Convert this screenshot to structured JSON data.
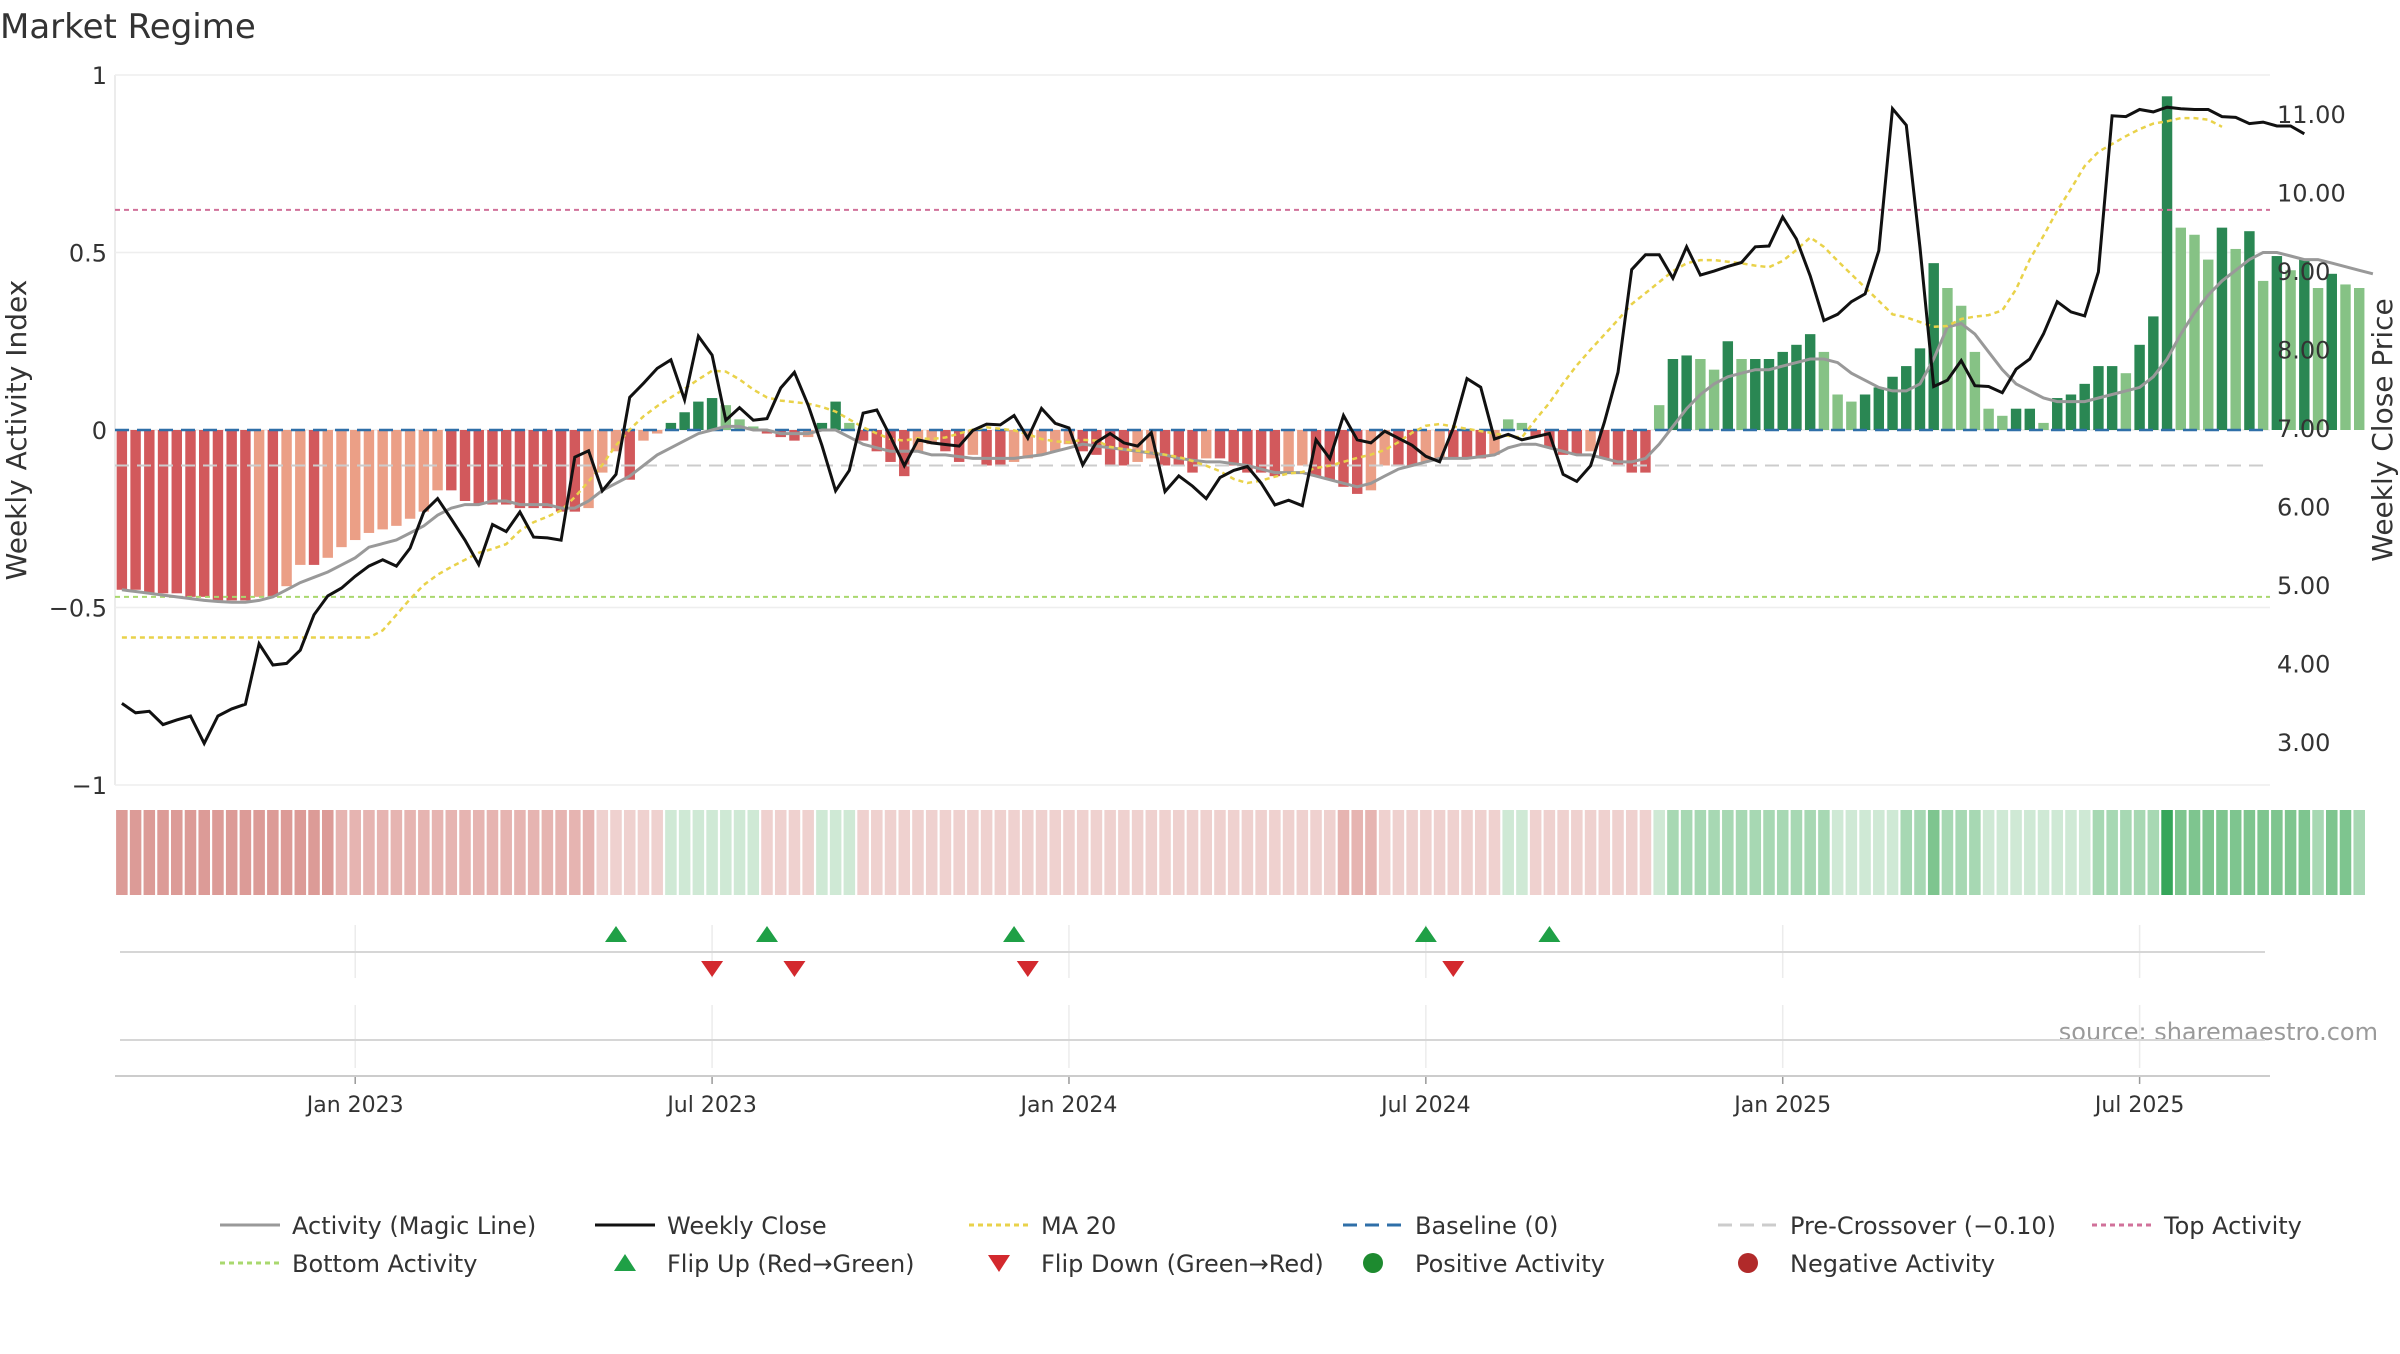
{
  "chart_data": {
    "type": "bar",
    "title": "Market Regime",
    "ylabel_left": "Weekly Activity Index",
    "ylabel_right": "Weekly Close Price",
    "source": "source: sharemaestro.com",
    "left_axis": {
      "ylim": [
        -1.0,
        1.0
      ],
      "ticks": [
        -1,
        -0.5,
        0,
        0.5,
        1
      ],
      "tick_labels": [
        "−1",
        "−0.5",
        "0",
        "0.5",
        "1"
      ]
    },
    "right_axis": {
      "ylim": [
        2.45,
        11.5
      ],
      "ticks": [
        3,
        4,
        5,
        6,
        7,
        8,
        9,
        10,
        11
      ],
      "tick_labels": [
        "3.00",
        "4.00",
        "5.00",
        "6.00",
        "7.00",
        "8.00",
        "9.00",
        "10.00",
        "11.00"
      ]
    },
    "x_tick_labels": [
      "Jan 2023",
      "Jul 2023",
      "Jan 2024",
      "Jul 2024",
      "Jan 2025",
      "Jul 2025"
    ],
    "x_tick_weeks": [
      17,
      43,
      69,
      95,
      121,
      147
    ],
    "week_count": 157,
    "reference_levels": {
      "baseline": 0,
      "pre_crossover": -0.1,
      "top_activity": 0.62,
      "bottom_activity": -0.47
    },
    "activity": [
      -0.45,
      -0.45,
      -0.46,
      -0.46,
      -0.46,
      -0.47,
      -0.47,
      -0.48,
      -0.48,
      -0.48,
      -0.47,
      -0.47,
      -0.44,
      -0.38,
      -0.38,
      -0.36,
      -0.33,
      -0.31,
      -0.29,
      -0.28,
      -0.27,
      -0.25,
      -0.23,
      -0.17,
      -0.17,
      -0.2,
      -0.21,
      -0.21,
      -0.21,
      -0.22,
      -0.22,
      -0.22,
      -0.23,
      -0.23,
      -0.22,
      -0.12,
      -0.06,
      -0.14,
      -0.03,
      -0.01,
      0.02,
      0.05,
      0.08,
      0.09,
      0.07,
      0.03,
      0.01,
      -0.01,
      -0.02,
      -0.03,
      -0.02,
      0.02,
      0.08,
      0.02,
      -0.03,
      -0.06,
      -0.09,
      -0.13,
      -0.06,
      -0.04,
      -0.06,
      -0.09,
      -0.07,
      -0.1,
      -0.1,
      -0.09,
      -0.08,
      -0.07,
      -0.06,
      -0.04,
      -0.06,
      -0.07,
      -0.1,
      -0.1,
      -0.09,
      -0.08,
      -0.1,
      -0.1,
      -0.12,
      -0.08,
      -0.08,
      -0.1,
      -0.12,
      -0.12,
      -0.13,
      -0.12,
      -0.1,
      -0.13,
      -0.14,
      -0.16,
      -0.18,
      -0.17,
      -0.1,
      -0.1,
      -0.1,
      -0.09,
      -0.08,
      -0.08,
      -0.08,
      -0.08,
      -0.07,
      0.03,
      0.02,
      -0.02,
      -0.05,
      -0.07,
      -0.07,
      -0.06,
      -0.08,
      -0.1,
      -0.12,
      -0.12,
      0.07,
      0.2,
      0.21,
      0.2,
      0.17,
      0.25,
      0.2,
      0.2,
      0.2,
      0.22,
      0.24,
      0.27,
      0.22,
      0.1,
      0.08,
      0.1,
      0.12,
      0.15,
      0.18,
      0.23,
      0.47,
      0.4,
      0.35,
      0.22,
      0.06,
      0.04,
      0.06,
      0.06,
      0.02,
      0.09,
      0.1,
      0.13,
      0.18,
      0.18,
      0.16,
      0.24,
      0.32,
      0.94,
      0.57,
      0.55,
      0.48,
      0.57,
      0.51,
      0.56,
      0.42,
      0.49,
      0.45,
      0.48,
      0.4,
      0.44,
      0.41,
      0.4
    ],
    "magic_line": [
      -0.45,
      -0.455,
      -0.46,
      -0.465,
      -0.47,
      -0.475,
      -0.48,
      -0.483,
      -0.485,
      -0.485,
      -0.48,
      -0.47,
      -0.45,
      -0.43,
      -0.415,
      -0.4,
      -0.38,
      -0.36,
      -0.33,
      -0.32,
      -0.31,
      -0.29,
      -0.27,
      -0.24,
      -0.22,
      -0.21,
      -0.21,
      -0.2,
      -0.2,
      -0.21,
      -0.21,
      -0.21,
      -0.22,
      -0.22,
      -0.2,
      -0.17,
      -0.15,
      -0.13,
      -0.1,
      -0.07,
      -0.05,
      -0.03,
      -0.01,
      0.0,
      0.01,
      0.01,
      0.0,
      0.0,
      -0.01,
      -0.01,
      -0.01,
      0.0,
      0.0,
      -0.02,
      -0.04,
      -0.05,
      -0.06,
      -0.06,
      -0.06,
      -0.07,
      -0.07,
      -0.075,
      -0.08,
      -0.08,
      -0.08,
      -0.08,
      -0.075,
      -0.07,
      -0.06,
      -0.05,
      -0.04,
      -0.045,
      -0.05,
      -0.055,
      -0.06,
      -0.065,
      -0.07,
      -0.08,
      -0.085,
      -0.09,
      -0.09,
      -0.095,
      -0.1,
      -0.11,
      -0.12,
      -0.12,
      -0.12,
      -0.13,
      -0.14,
      -0.15,
      -0.16,
      -0.15,
      -0.13,
      -0.11,
      -0.1,
      -0.09,
      -0.08,
      -0.08,
      -0.08,
      -0.075,
      -0.07,
      -0.05,
      -0.04,
      -0.04,
      -0.05,
      -0.06,
      -0.07,
      -0.07,
      -0.08,
      -0.09,
      -0.09,
      -0.08,
      -0.04,
      0.01,
      0.06,
      0.1,
      0.13,
      0.15,
      0.16,
      0.17,
      0.17,
      0.18,
      0.19,
      0.2,
      0.2,
      0.19,
      0.16,
      0.14,
      0.12,
      0.11,
      0.11,
      0.13,
      0.2,
      0.29,
      0.3,
      0.27,
      0.22,
      0.17,
      0.13,
      0.11,
      0.09,
      0.08,
      0.08,
      0.08,
      0.09,
      0.1,
      0.11,
      0.12,
      0.15,
      0.2,
      0.27,
      0.33,
      0.38,
      0.42,
      0.45,
      0.48,
      0.5,
      0.5,
      0.49,
      0.48,
      0.48,
      0.47,
      0.46,
      0.45,
      0.44
    ],
    "weekly_close": [
      3.49,
      3.37,
      3.39,
      3.22,
      3.28,
      3.33,
      2.98,
      3.33,
      3.42,
      3.48,
      4.25,
      3.98,
      4.0,
      4.17,
      4.62,
      4.86,
      4.96,
      5.11,
      5.24,
      5.32,
      5.24,
      5.47,
      5.93,
      6.1,
      5.84,
      5.57,
      5.26,
      5.77,
      5.68,
      5.93,
      5.61,
      5.6,
      5.57,
      6.63,
      6.71,
      6.2,
      6.41,
      7.39,
      7.57,
      7.76,
      7.87,
      7.36,
      8.17,
      7.93,
      7.1,
      7.26,
      7.1,
      7.12,
      7.51,
      7.71,
      7.29,
      6.78,
      6.2,
      6.46,
      7.19,
      7.23,
      6.89,
      6.52,
      6.85,
      6.81,
      6.79,
      6.77,
      6.97,
      7.05,
      7.04,
      7.16,
      6.87,
      7.25,
      7.06,
      7.0,
      6.53,
      6.82,
      6.93,
      6.81,
      6.77,
      6.94,
      6.19,
      6.39,
      6.26,
      6.1,
      6.37,
      6.46,
      6.51,
      6.3,
      6.02,
      6.08,
      6.01,
      6.85,
      6.61,
      7.16,
      6.85,
      6.81,
      6.96,
      6.87,
      6.78,
      6.64,
      6.57,
      7.0,
      7.63,
      7.52,
      6.86,
      6.92,
      6.85,
      6.89,
      6.93,
      6.41,
      6.32,
      6.52,
      7.07,
      7.71,
      9.02,
      9.21,
      9.21,
      8.91,
      9.31,
      8.95,
      9.0,
      9.06,
      9.11,
      9.31,
      9.32,
      9.69,
      9.41,
      8.94,
      8.37,
      8.45,
      8.61,
      8.71,
      9.26,
      11.07,
      10.86,
      9.3,
      7.53,
      7.61,
      7.86,
      7.54,
      7.53,
      7.45,
      7.75,
      7.88,
      8.2,
      8.61,
      8.48,
      8.43,
      8.99,
      10.98,
      10.97,
      11.06,
      11.03,
      11.09,
      11.07,
      11.06,
      11.06,
      10.97,
      10.96,
      10.88,
      10.9,
      10.85,
      10.85,
      10.75
    ],
    "ma20": [
      4.33,
      4.33,
      4.33,
      4.33,
      4.33,
      4.33,
      4.33,
      4.33,
      4.33,
      4.33,
      4.33,
      4.33,
      4.33,
      4.33,
      4.33,
      4.33,
      4.33,
      4.33,
      4.33,
      4.42,
      4.62,
      4.82,
      5.0,
      5.13,
      5.23,
      5.32,
      5.41,
      5.46,
      5.52,
      5.69,
      5.8,
      5.87,
      5.95,
      6.12,
      6.32,
      6.53,
      6.78,
      6.98,
      7.15,
      7.28,
      7.39,
      7.5,
      7.62,
      7.73,
      7.72,
      7.62,
      7.49,
      7.39,
      7.35,
      7.33,
      7.31,
      7.27,
      7.21,
      7.11,
      7.01,
      6.93,
      6.86,
      6.84,
      6.87,
      6.86,
      6.88,
      6.93,
      6.98,
      7.01,
      6.99,
      6.97,
      6.92,
      6.86,
      6.83,
      6.82,
      6.85,
      6.84,
      6.76,
      6.73,
      6.71,
      6.69,
      6.66,
      6.63,
      6.58,
      6.52,
      6.45,
      6.35,
      6.3,
      6.33,
      6.38,
      6.42,
      6.44,
      6.49,
      6.52,
      6.57,
      6.62,
      6.66,
      6.72,
      6.82,
      6.94,
      7.03,
      7.05,
      7.02,
      6.99,
      6.96,
      6.93,
      6.9,
      6.88,
      7.11,
      7.32,
      7.57,
      7.8,
      8.0,
      8.19,
      8.38,
      8.58,
      8.72,
      8.86,
      9.0,
      9.1,
      9.14,
      9.14,
      9.12,
      9.1,
      9.07,
      9.05,
      9.13,
      9.27,
      9.43,
      9.31,
      9.13,
      8.96,
      8.79,
      8.62,
      8.45,
      8.41,
      8.35,
      8.29,
      8.3,
      8.39,
      8.42,
      8.44,
      8.5,
      8.77,
      9.15,
      9.45,
      9.77,
      10.05,
      10.34,
      10.52,
      10.62,
      10.72,
      10.81,
      10.88,
      10.91,
      10.95,
      10.95,
      10.93,
      10.84
    ],
    "flip_up_weeks": [
      36,
      47,
      65,
      95,
      104
    ],
    "flip_down_weeks": [
      43,
      49,
      66,
      97
    ],
    "legend": [
      {
        "label": "Activity (Magic Line)",
        "kind": "line",
        "color": "#999999",
        "dash": ""
      },
      {
        "label": "Weekly Close",
        "kind": "line",
        "color": "#111111",
        "dash": ""
      },
      {
        "label": "MA 20",
        "kind": "line",
        "color": "#e9d24a",
        "dash": "5,4"
      },
      {
        "label": "Baseline (0)",
        "kind": "line",
        "color": "#2f6fa8",
        "dash": "14,8"
      },
      {
        "label": "Pre-Crossover (−0.10)",
        "kind": "line",
        "color": "#cccccc",
        "dash": "14,8"
      },
      {
        "label": "Top Activity",
        "kind": "line",
        "color": "#d1719a",
        "dash": "5,4"
      },
      {
        "label": "Bottom Activity",
        "kind": "line",
        "color": "#a9d86e",
        "dash": "5,4"
      },
      {
        "label": "Flip Up (Red→Green)",
        "kind": "triangle-up",
        "color": "#1fa046",
        "dash": ""
      },
      {
        "label": "Flip Down (Green→Red)",
        "kind": "triangle-down",
        "color": "#d3292e",
        "dash": ""
      },
      {
        "label": "Positive Activity",
        "kind": "dot",
        "color": "#1d8a2f",
        "dash": ""
      },
      {
        "label": "Negative Activity",
        "kind": "dot",
        "color": "#b12a2a",
        "dash": ""
      }
    ],
    "grid": true,
    "legend_position": "bottom"
  }
}
